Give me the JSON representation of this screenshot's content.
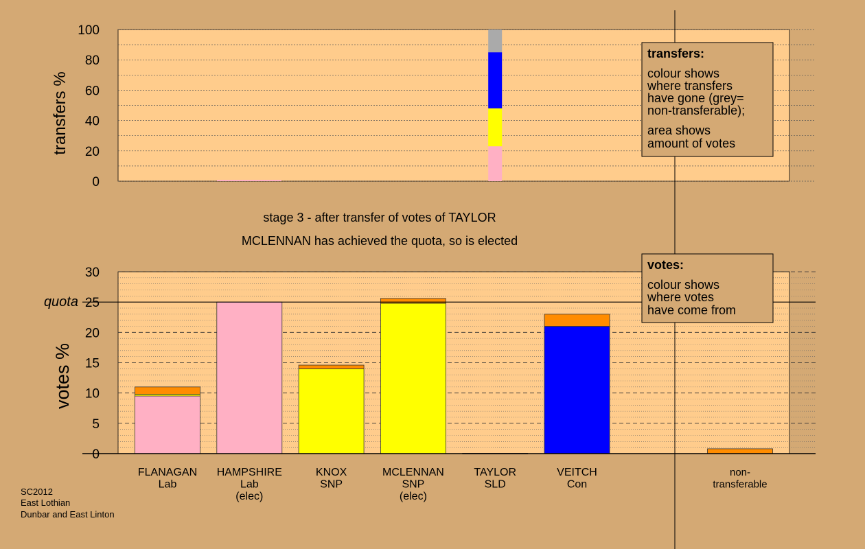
{
  "footer": [
    "SC2012",
    "East Lothian",
    "Dunbar and East Linton"
  ],
  "colors": {
    "background": "#d4a974",
    "plot_bg": "#ffcc8c",
    "Lab": "#ffb0c4",
    "SNP": "#ffff00",
    "Con": "#0000ff",
    "SLD": "#ff8c00",
    "nontransferable": "#aaaaaa"
  },
  "chart_data": [
    {
      "id": "transfers",
      "type": "bar",
      "stacked": true,
      "ylabel": "transfers %",
      "ylim": [
        0,
        100
      ],
      "yticks": [
        0,
        20,
        40,
        60,
        80,
        100
      ],
      "grid": true,
      "categories": [
        "FLANAGAN",
        "HAMPSHIRE",
        "KNOX",
        "MCLENNAN",
        "TAYLOR",
        "VEITCH",
        "non-transferable"
      ],
      "stacks": [
        {
          "category": "TAYLOR",
          "segments": [
            {
              "from": "Lab",
              "value": 23,
              "color": "#ffb0c4"
            },
            {
              "from": "SNP",
              "value": 25,
              "color": "#ffff00"
            },
            {
              "from": "Con",
              "value": 37,
              "color": "#0000ff"
            },
            {
              "from": "non-transferable",
              "value": 15,
              "color": "#aaaaaa"
            }
          ]
        }
      ],
      "legend": {
        "title": "transfers:",
        "lines1": [
          "colour shows",
          "where transfers",
          "have gone (grey=",
          "non-transferable);"
        ],
        "lines2": [
          "area shows",
          "amount of votes"
        ]
      }
    },
    {
      "id": "votes",
      "type": "bar",
      "stacked": true,
      "title_lines": [
        "stage 3 - after transfer of votes of TAYLOR",
        "MCLENNAN has achieved the quota, so is elected"
      ],
      "ylabel": "votes %",
      "ylim": [
        0,
        30
      ],
      "yticks": [
        0,
        5,
        10,
        15,
        20,
        25,
        30
      ],
      "quota": 25,
      "quota_label": "quota",
      "grid": true,
      "categories": [
        {
          "lines": [
            "FLANAGAN",
            "Lab"
          ]
        },
        {
          "lines": [
            "HAMPSHIRE",
            "Lab",
            "(elec)"
          ]
        },
        {
          "lines": [
            "KNOX",
            "SNP"
          ]
        },
        {
          "lines": [
            "MCLENNAN",
            "SNP",
            "(elec)"
          ]
        },
        {
          "lines": [
            "TAYLOR",
            "SLD"
          ]
        },
        {
          "lines": [
            "VEITCH",
            "Con"
          ]
        },
        {
          "lines": [
            "non-",
            "transferable"
          ]
        }
      ],
      "stacks": [
        {
          "segments": [
            {
              "value": 9.5,
              "color": "#ffb0c4"
            },
            {
              "value": 0.3,
              "color": "#ffff00"
            },
            {
              "value": 1.2,
              "color": "#ff8c00"
            }
          ]
        },
        {
          "segments": [
            {
              "value": 25.0,
              "color": "#ffb0c4"
            }
          ]
        },
        {
          "segments": [
            {
              "value": 14.0,
              "color": "#ffff00"
            },
            {
              "value": 0.6,
              "color": "#ff8c00"
            }
          ]
        },
        {
          "segments": [
            {
              "value": 24.8,
              "color": "#ffff00"
            },
            {
              "value": 0.8,
              "color": "#ff8c00"
            }
          ]
        },
        {
          "segments": [
            {
              "value": 0.05,
              "color": "#ff8c00"
            }
          ]
        },
        {
          "segments": [
            {
              "value": 21.0,
              "color": "#0000ff"
            },
            {
              "value": 2.0,
              "color": "#ff8c00"
            }
          ]
        },
        {
          "segments": [
            {
              "value": 0.8,
              "color": "#ff8c00"
            }
          ]
        }
      ],
      "legend": {
        "title": "votes:",
        "lines1": [
          "colour shows",
          "where votes",
          "have come from"
        ]
      }
    }
  ]
}
